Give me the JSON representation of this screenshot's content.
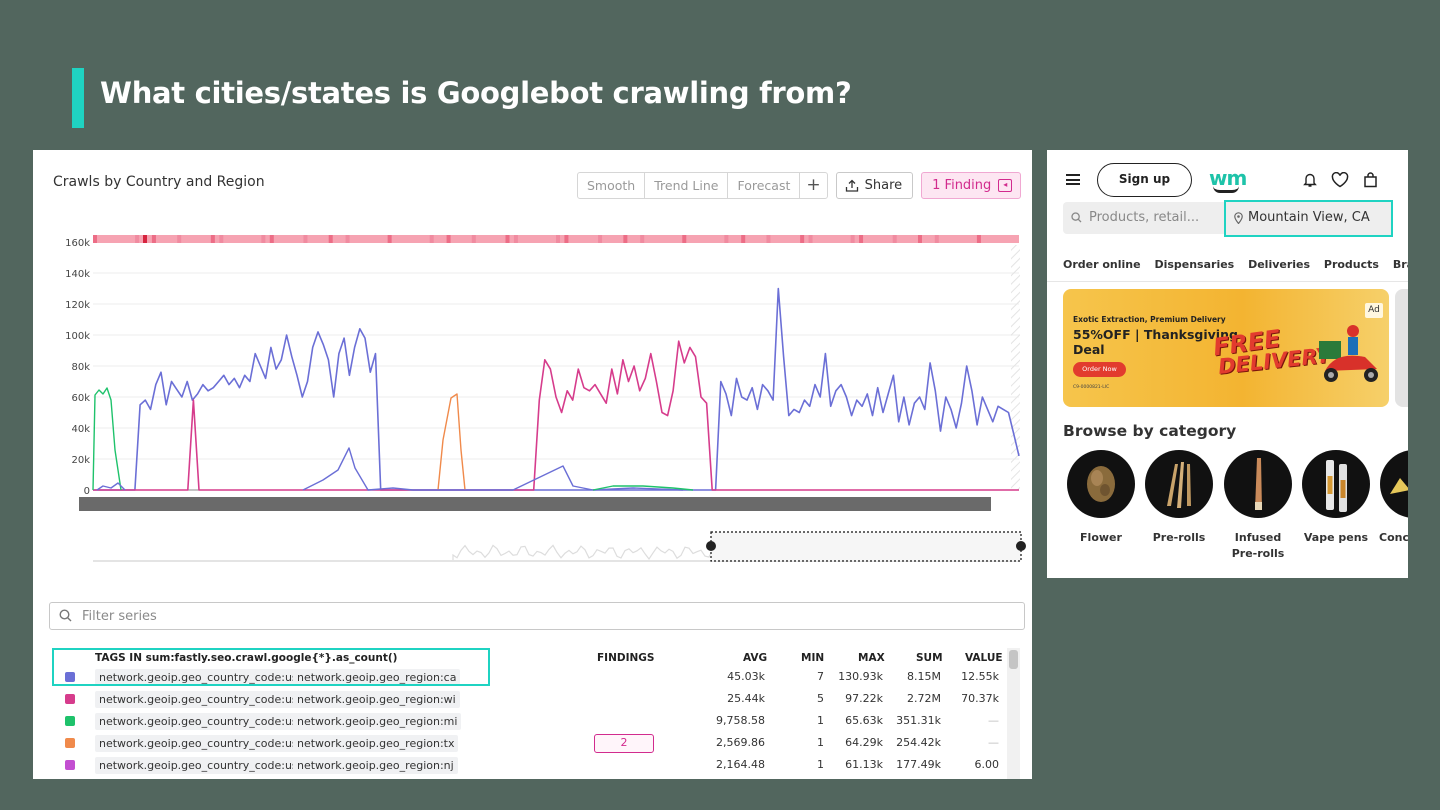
{
  "slide": {
    "title": "What cities/states is Googlebot crawling from?",
    "accent_color": "#1fd3c2",
    "background_color": "#52665e"
  },
  "dashboard": {
    "chart_title": "Crawls by Country and Region",
    "toolbar": {
      "smooth": "Smooth",
      "trend_line": "Trend Line",
      "forecast": "Forecast",
      "add": "+",
      "share": "Share",
      "finding": "1 Finding"
    },
    "filter_placeholder": "Filter series",
    "table": {
      "headers": {
        "tags": "TAGS IN sum:fastly.seo.crawl.google{*}.as_count()",
        "findings": "FINDINGS",
        "avg": "AVG",
        "min": "MIN",
        "max": "MAX",
        "sum": "SUM",
        "value": "VALUE"
      },
      "rows": [
        {
          "color": "#6b6fd6",
          "country": "network.geoip.geo_country_code:us",
          "region": "network.geoip.geo_region:ca",
          "findings": "",
          "avg": "45.03k",
          "min": "7",
          "max": "130.93k",
          "sum": "8.15M",
          "value": "12.55k"
        },
        {
          "color": "#d63c8c",
          "country": "network.geoip.geo_country_code:us",
          "region": "network.geoip.geo_region:wi",
          "findings": "",
          "avg": "25.44k",
          "min": "5",
          "max": "97.22k",
          "sum": "2.72M",
          "value": "70.37k"
        },
        {
          "color": "#1ec26b",
          "country": "network.geoip.geo_country_code:us",
          "region": "network.geoip.geo_region:mi",
          "findings": "",
          "avg": "9,758.58",
          "min": "1",
          "max": "65.63k",
          "sum": "351.31k",
          "value": "—"
        },
        {
          "color": "#f08a4b",
          "country": "network.geoip.geo_country_code:us",
          "region": "network.geoip.geo_region:tx",
          "findings": "2",
          "avg": "2,569.86",
          "min": "1",
          "max": "64.29k",
          "sum": "254.42k",
          "value": "—"
        },
        {
          "color": "#c34fd1",
          "country": "network.geoip.geo_country_code:us",
          "region": "network.geoip.geo_region:nj",
          "findings": "",
          "avg": "2,164.48",
          "min": "1",
          "max": "61.13k",
          "sum": "177.49k",
          "value": "6.00"
        }
      ]
    }
  },
  "chart_data": {
    "type": "line",
    "title": "Crawls by Country and Region",
    "ylim": [
      0,
      160000
    ],
    "y_ticks": [
      "0",
      "20k",
      "40k",
      "60k",
      "80k",
      "100k",
      "120k",
      "140k",
      "160k"
    ],
    "series": [
      {
        "name": "network.geoip.geo_region:ca",
        "color": "#6b6fd6",
        "values": [
          0,
          0,
          0,
          0,
          0,
          0,
          0,
          0,
          0,
          55000,
          58000,
          52000,
          68000,
          76000,
          55000,
          70000,
          65000,
          60000,
          70000,
          58000,
          62000,
          68000,
          64000,
          66000,
          70000,
          74000,
          68000,
          72000,
          66000,
          74000,
          70000,
          88000,
          80000,
          72000,
          92000,
          78000,
          84000,
          100000,
          86000,
          74000,
          60000,
          70000,
          92000,
          102000,
          94000,
          84000,
          60000,
          88000,
          98000,
          74000,
          92000,
          104000,
          98000,
          76000,
          88000,
          0,
          0,
          0,
          0,
          0,
          0,
          0,
          0,
          0,
          0,
          0,
          0,
          0,
          0,
          0,
          0,
          0,
          0,
          0,
          0,
          0,
          0,
          0,
          0,
          0,
          0,
          0,
          0,
          0,
          0,
          0,
          0,
          0,
          0,
          0,
          0,
          0,
          0,
          0,
          0,
          0,
          0,
          0,
          0,
          0,
          0,
          0,
          0,
          0,
          0,
          0,
          0,
          0,
          0,
          0,
          0,
          0,
          0,
          0,
          0,
          0,
          0,
          0,
          0,
          0,
          70000,
          62000,
          48000,
          72000,
          60000,
          58000,
          66000,
          52000,
          68000,
          64000,
          58000,
          130000,
          86000,
          48000,
          52000,
          50000,
          58000,
          54000,
          68000,
          60000,
          88000,
          54000,
          64000,
          68000,
          60000,
          48000,
          58000,
          54000,
          62000,
          48000,
          66000,
          50000,
          62000,
          74000,
          44000,
          60000,
          42000,
          56000,
          60000,
          52000,
          82000,
          64000,
          38000,
          60000,
          52000,
          40000,
          56000,
          80000,
          64000,
          42000,
          60000,
          52000,
          44000,
          54000,
          52000,
          50000,
          36000,
          22000
        ]
      },
      {
        "name": "network.geoip.geo_region:wi",
        "color": "#d63c8c",
        "values": [
          0,
          0,
          0,
          0,
          0,
          0,
          0,
          0,
          0,
          0,
          0,
          0,
          0,
          0,
          0,
          0,
          0,
          0,
          58000,
          0,
          0,
          0,
          0,
          0,
          0,
          0,
          0,
          0,
          0,
          0,
          0,
          0,
          0,
          0,
          0,
          0,
          0,
          0,
          0,
          0,
          0,
          0,
          0,
          0,
          0,
          0,
          0,
          0,
          0,
          0,
          0,
          0,
          0,
          0,
          0,
          0,
          0,
          0,
          0,
          0,
          0,
          0,
          0,
          0,
          0,
          0,
          0,
          0,
          0,
          0,
          0,
          0,
          0,
          0,
          0,
          0,
          0,
          0,
          0,
          0,
          58000,
          84000,
          78000,
          60000,
          50000,
          64000,
          58000,
          78000,
          66000,
          64000,
          68000,
          62000,
          56000,
          78000,
          62000,
          84000,
          70000,
          80000,
          64000,
          72000,
          88000,
          70000,
          50000,
          48000,
          64000,
          96000,
          82000,
          92000,
          86000,
          60000,
          56000,
          0,
          0,
          0,
          0,
          0,
          0,
          0,
          0,
          0,
          0,
          0,
          0,
          0,
          0,
          0,
          0,
          0,
          0,
          0,
          0,
          0,
          0,
          0,
          0,
          0,
          0,
          0,
          0,
          0,
          0,
          0,
          0,
          0,
          0,
          0,
          0,
          0,
          0,
          0,
          0,
          0,
          0,
          0,
          0,
          0,
          0,
          0,
          0,
          0,
          0,
          0,
          0,
          0,
          0,
          0,
          0
        ]
      }
    ]
  },
  "weedmaps": {
    "signup": "Sign up",
    "logo": "wm",
    "search_placeholder": "Products, retail...",
    "location": "Mountain View, CA",
    "nav": [
      "Order online",
      "Dispensaries",
      "Deliveries",
      "Products",
      "Brand"
    ],
    "ad": {
      "line1": "Exotic Extraction, Premium Delivery",
      "line2": "55%OFF | Thanksgiving Deal",
      "cta": "Order Now",
      "badge": "Ad",
      "fine_print": "C9-0000821-LIC",
      "free": "FREE",
      "delivery": "DELIVERY"
    },
    "browse_title": "Browse by category",
    "categories": [
      "Flower",
      "Pre-rolls",
      "Infused Pre-rolls",
      "Vape pens",
      "Conc"
    ]
  }
}
